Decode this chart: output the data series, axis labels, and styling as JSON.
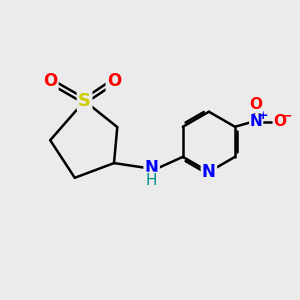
{
  "background_color": "#ebebeb",
  "bond_color": "#000000",
  "bond_width": 1.8,
  "atom_colors": {
    "S": "#cccc00",
    "O_sulfone": "#ff0000",
    "N_ring": "#0000ff",
    "N_amine": "#0000ff",
    "NH_color": "#008080",
    "N_nitro": "#0000ff",
    "O_nitro": "#ff0000"
  },
  "font_sizes": {
    "S": 13,
    "O": 12,
    "N": 12,
    "NH": 11,
    "nitro_N": 11,
    "nitro_O": 11,
    "charge": 9
  }
}
